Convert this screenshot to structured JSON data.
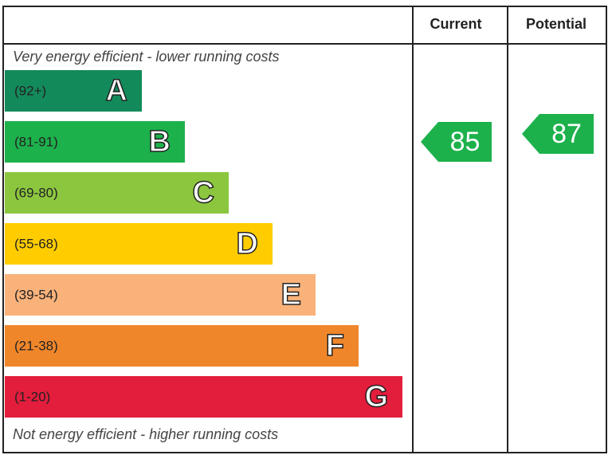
{
  "header": {
    "current": "Current",
    "potential": "Potential"
  },
  "top_note": "Very energy efficient - lower running costs",
  "bottom_note": "Not energy efficient - higher running costs",
  "bands": [
    {
      "range": "(92+)",
      "letter": "A",
      "color": "#138a5a"
    },
    {
      "range": "(81-91)",
      "letter": "B",
      "color": "#1db14c"
    },
    {
      "range": "(69-80)",
      "letter": "C",
      "color": "#8cc63f"
    },
    {
      "range": "(55-68)",
      "letter": "D",
      "color": "#ffcc00"
    },
    {
      "range": "(39-54)",
      "letter": "E",
      "color": "#f9b27a"
    },
    {
      "range": "(21-38)",
      "letter": "F",
      "color": "#f0862a"
    },
    {
      "range": "(1-20)",
      "letter": "G",
      "color": "#e31d3c"
    }
  ],
  "ratings": {
    "current": 85,
    "potential": 87
  }
}
